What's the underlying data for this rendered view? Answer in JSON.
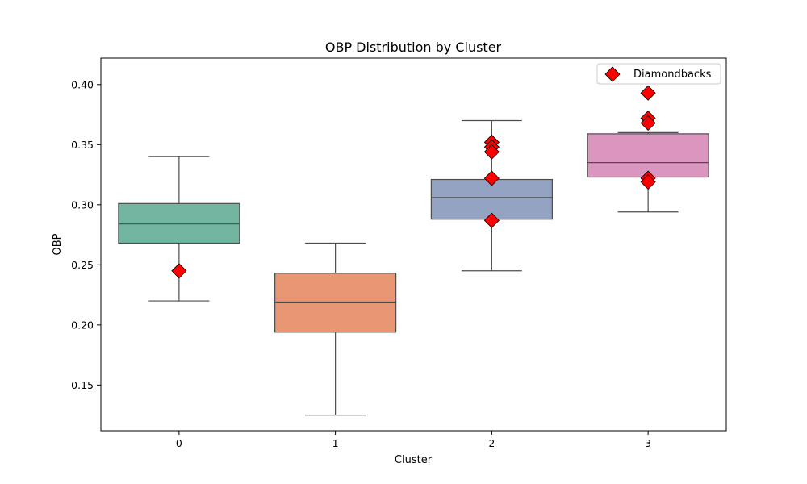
{
  "chart_data": {
    "type": "box",
    "title": "OBP Distribution by Cluster",
    "xlabel": "Cluster",
    "ylabel": "OBP",
    "categories": [
      "0",
      "1",
      "2",
      "3"
    ],
    "ylim": [
      0.112,
      0.422
    ],
    "yticks": [
      0.15,
      0.2,
      0.25,
      0.3,
      0.35,
      0.4
    ],
    "ytick_labels": [
      "0.15",
      "0.20",
      "0.25",
      "0.30",
      "0.35",
      "0.40"
    ],
    "boxes": [
      {
        "category": "0",
        "whisker_low": 0.22,
        "q1": 0.268,
        "median": 0.284,
        "q3": 0.301,
        "whisker_high": 0.34,
        "color": "#72b6a1"
      },
      {
        "category": "1",
        "whisker_low": 0.125,
        "q1": 0.194,
        "median": 0.219,
        "q3": 0.243,
        "whisker_high": 0.268,
        "color": "#e99675"
      },
      {
        "category": "2",
        "whisker_low": 0.245,
        "q1": 0.288,
        "median": 0.306,
        "q3": 0.321,
        "whisker_high": 0.37,
        "color": "#95a3c3"
      },
      {
        "category": "3",
        "whisker_low": 0.294,
        "q1": 0.323,
        "median": 0.335,
        "q3": 0.359,
        "whisker_high": 0.36,
        "color": "#db96c0"
      }
    ],
    "markers": {
      "name": "Diamondbacks",
      "color": "#ff0000",
      "points": [
        {
          "category": "0",
          "value": 0.245
        },
        {
          "category": "2",
          "value": 0.352
        },
        {
          "category": "2",
          "value": 0.348
        },
        {
          "category": "2",
          "value": 0.344
        },
        {
          "category": "2",
          "value": 0.322
        },
        {
          "category": "2",
          "value": 0.287
        },
        {
          "category": "3",
          "value": 0.393
        },
        {
          "category": "3",
          "value": 0.372
        },
        {
          "category": "3",
          "value": 0.368
        },
        {
          "category": "3",
          "value": 0.322
        },
        {
          "category": "3",
          "value": 0.319
        }
      ]
    },
    "legend": {
      "position": "top-right",
      "entries": [
        "Diamondbacks"
      ]
    },
    "grid": false
  }
}
